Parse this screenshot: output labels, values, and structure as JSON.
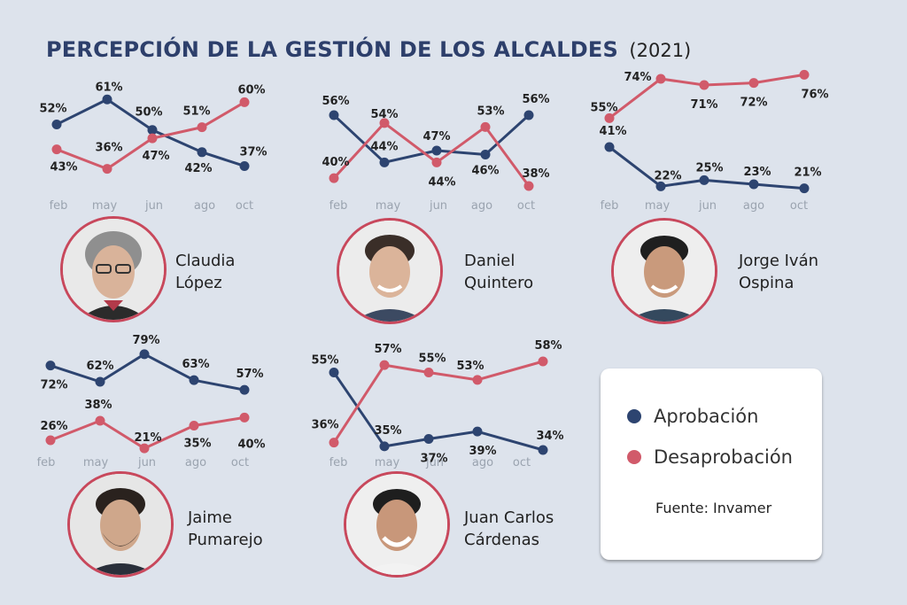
{
  "title": "PERCEPCIÓN DE LA GESTIÓN DE LOS ALCALDES",
  "year": "(2021)",
  "months": [
    "feb",
    "may",
    "jun",
    "ago",
    "oct"
  ],
  "colors": {
    "approval": "#2d4470",
    "disapproval": "#d15a6a",
    "ring": "#c8485c",
    "background": "#dde3ec"
  },
  "legend": {
    "approval": "Aprobación",
    "disapproval": "Desaprobación",
    "source": "Fuente: Invamer"
  },
  "people": [
    {
      "first": "Claudia",
      "last": "López"
    },
    {
      "first": "Daniel",
      "last": "Quintero"
    },
    {
      "first": "Jorge Iván",
      "last": "Ospina"
    },
    {
      "first": "Jaime",
      "last": "Pumarejo"
    },
    {
      "first": "Juan Carlos",
      "last": "Cárdenas"
    }
  ],
  "chart_data": [
    {
      "type": "line",
      "mayor": "Claudia López",
      "categories": [
        "feb",
        "may",
        "jun",
        "ago",
        "oct"
      ],
      "series": [
        {
          "name": "Aprobación",
          "values": [
            52,
            61,
            50,
            42,
            37
          ]
        },
        {
          "name": "Desaprobación",
          "values": [
            43,
            36,
            47,
            51,
            60
          ]
        }
      ],
      "labels": {
        "Aprobación": [
          "52%",
          "61%",
          "50%",
          "42%",
          "37%"
        ],
        "Desaprobación": [
          "43%",
          "36%",
          "47%",
          "51%",
          "60%"
        ]
      }
    },
    {
      "type": "line",
      "mayor": "Daniel Quintero",
      "categories": [
        "feb",
        "may",
        "jun",
        "ago",
        "oct"
      ],
      "series": [
        {
          "name": "Aprobación",
          "values": [
            56,
            44,
            47,
            46,
            56
          ]
        },
        {
          "name": "Desaprobación",
          "values": [
            40,
            54,
            44,
            53,
            38
          ]
        }
      ],
      "labels": {
        "Aprobación": [
          "56%",
          "44%",
          "47%",
          "46%",
          "56%"
        ],
        "Desaprobación": [
          "40%",
          "54%",
          "44%",
          "53%",
          "38%"
        ]
      }
    },
    {
      "type": "line",
      "mayor": "Jorge Iván Ospina",
      "categories": [
        "feb",
        "may",
        "jun",
        "ago",
        "oct"
      ],
      "series": [
        {
          "name": "Aprobación",
          "values": [
            41,
            22,
            25,
            23,
            21
          ]
        },
        {
          "name": "Desaprobación",
          "values": [
            55,
            74,
            71,
            72,
            76
          ]
        }
      ],
      "labels": {
        "Aprobación": [
          "41%",
          "22%",
          "25%",
          "23%",
          "21%"
        ],
        "Desaprobación": [
          "55%",
          "74%",
          "71%",
          "72%",
          "76%"
        ]
      }
    },
    {
      "type": "line",
      "mayor": "Jaime Pumarejo",
      "categories": [
        "feb",
        "may",
        "jun",
        "ago",
        "oct"
      ],
      "series": [
        {
          "name": "Aprobación",
          "values": [
            72,
            62,
            79,
            63,
            57
          ]
        },
        {
          "name": "Desaprobación",
          "values": [
            26,
            38,
            21,
            35,
            40
          ]
        }
      ],
      "labels": {
        "Aprobación": [
          "72%",
          "62%",
          "79%",
          "63%",
          "57%"
        ],
        "Desaprobación": [
          "26%",
          "38%",
          "21%",
          "35%",
          "40%"
        ]
      }
    },
    {
      "type": "line",
      "mayor": "Juan Carlos Cárdenas",
      "categories": [
        "feb",
        "may",
        "jun",
        "ago",
        "oct"
      ],
      "series": [
        {
          "name": "Aprobación",
          "values": [
            55,
            35,
            37,
            39,
            34
          ]
        },
        {
          "name": "Desaprobación",
          "values": [
            36,
            57,
            55,
            53,
            58
          ]
        }
      ],
      "labels": {
        "Aprobación": [
          "55%",
          "35%",
          "37%",
          "39%",
          "34%"
        ],
        "Desaprobación": [
          "36%",
          "57%",
          "55%",
          "53%",
          "58%"
        ]
      }
    }
  ]
}
